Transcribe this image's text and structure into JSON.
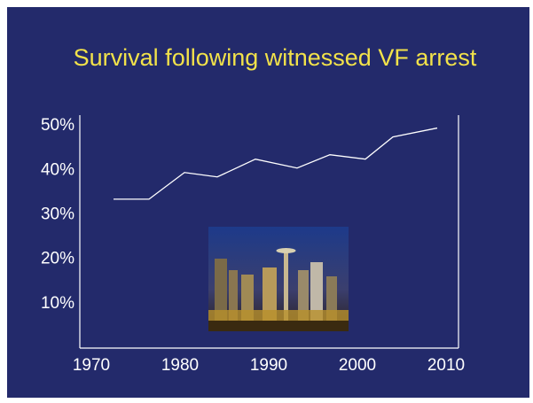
{
  "chart_data": {
    "type": "line",
    "title": "Survival following witnessed VF arrest",
    "x": [
      1972.5,
      1976.5,
      1980.5,
      1984.2,
      1988.5,
      1993.2,
      1996.9,
      2000.9,
      2004,
      2009
    ],
    "values": [
      33.5,
      33.5,
      39.5,
      38.5,
      42.5,
      40.5,
      43.5,
      42.5,
      47.5,
      49.5
    ],
    "color": "#ffffff",
    "xlim": [
      1968.7,
      2011.4
    ],
    "xticks": [
      1970,
      1980,
      1990,
      2000,
      2010
    ],
    "ylim": [
      0,
      52.4
    ],
    "yticks": [
      {
        "value": 10,
        "label": "10%"
      },
      {
        "value": 20,
        "label": "20%"
      },
      {
        "value": 30,
        "label": "30%"
      },
      {
        "value": 40,
        "label": "40%"
      },
      {
        "value": 50,
        "label": "50%"
      }
    ]
  }
}
